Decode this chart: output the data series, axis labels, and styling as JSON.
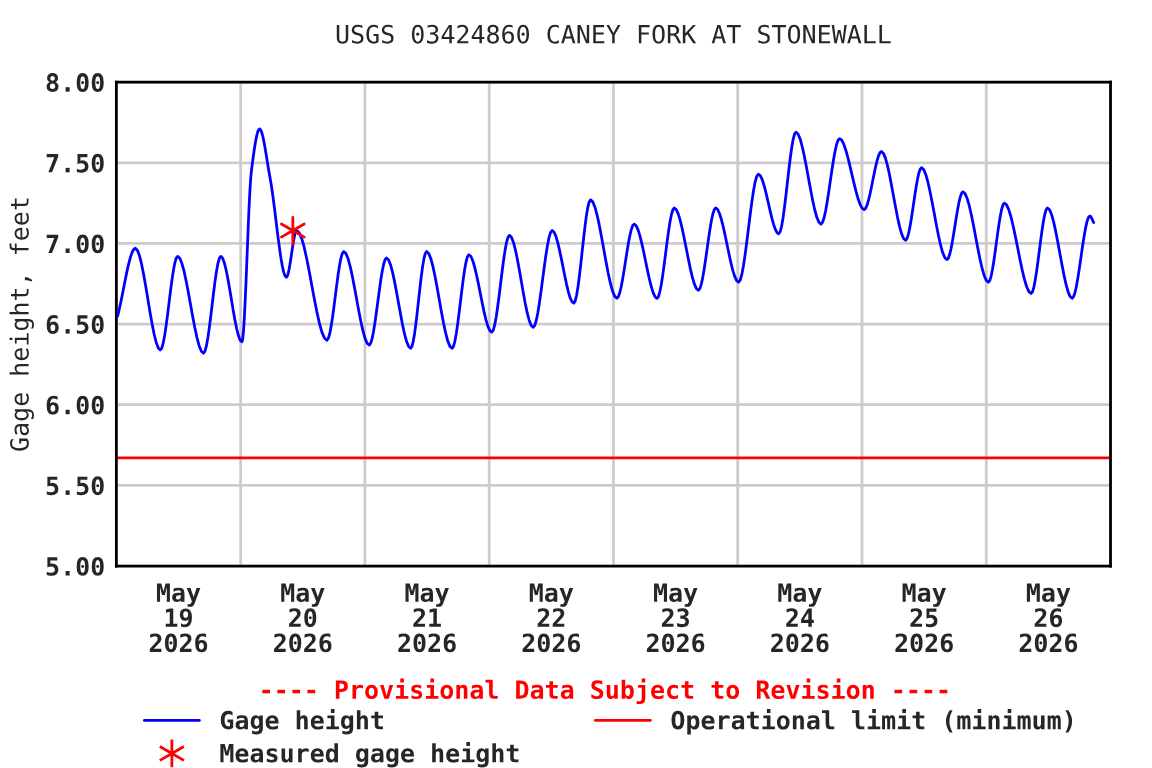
{
  "chart_data": {
    "type": "line",
    "title": "USGS 03424860 CANEY FORK AT STONEWALL",
    "ylabel": "Gage height, feet",
    "annotations": [
      "---- Provisional Data Subject to Revision ----"
    ],
    "series": [
      {
        "name": "Gage height",
        "color": "#0000ff",
        "marker": "none",
        "line_style": "solid",
        "x": [
          "2026-05-19T00:15",
          "2026-05-19T03:40",
          "2026-05-19T08:30",
          "2026-05-19T11:50",
          "2026-05-19T16:50",
          "2026-05-19T20:10",
          "2026-05-20T00:15",
          "2026-05-20T02:05",
          "2026-05-20T03:40",
          "2026-05-20T05:40",
          "2026-05-20T08:50",
          "2026-05-20T10:50",
          "2026-05-20T16:40",
          "2026-05-20T19:55",
          "2026-05-21T00:50",
          "2026-05-21T04:10",
          "2026-05-21T08:50",
          "2026-05-21T11:55",
          "2026-05-21T16:50",
          "2026-05-21T20:05",
          "2026-05-22T00:30",
          "2026-05-22T03:55",
          "2026-05-22T08:30",
          "2026-05-22T12:10",
          "2026-05-22T16:20",
          "2026-05-22T19:35",
          "2026-05-23T00:40",
          "2026-05-23T04:00",
          "2026-05-23T08:25",
          "2026-05-23T11:45",
          "2026-05-23T16:25",
          "2026-05-23T19:45",
          "2026-05-24T00:10",
          "2026-05-24T04:00",
          "2026-05-24T07:55",
          "2026-05-24T11:15",
          "2026-05-24T16:05",
          "2026-05-24T19:40",
          "2026-05-25T00:25",
          "2026-05-25T03:45",
          "2026-05-25T08:25",
          "2026-05-25T11:30",
          "2026-05-25T16:25",
          "2026-05-25T19:30",
          "2026-05-26T00:25",
          "2026-05-26T03:30",
          "2026-05-26T08:40",
          "2026-05-26T11:50",
          "2026-05-26T16:35",
          "2026-05-26T20:00",
          "2026-05-26T20:45"
        ],
        "values": [
          6.55,
          6.97,
          6.34,
          6.92,
          6.32,
          6.92,
          6.39,
          7.45,
          7.71,
          7.41,
          6.79,
          7.08,
          6.4,
          6.95,
          6.37,
          6.91,
          6.35,
          6.95,
          6.35,
          6.93,
          6.45,
          7.05,
          6.48,
          7.08,
          6.63,
          7.27,
          6.66,
          7.12,
          6.66,
          7.22,
          6.71,
          7.22,
          6.76,
          7.43,
          7.06,
          7.69,
          7.12,
          7.65,
          7.21,
          7.57,
          7.02,
          7.47,
          6.9,
          7.32,
          6.76,
          7.25,
          6.69,
          7.22,
          6.66,
          7.17,
          7.13
        ]
      },
      {
        "name": "Measured gage height",
        "type": "scatter",
        "color": "#ff0000",
        "marker": "cross",
        "x": [
          "2026-05-20T10:05"
        ],
        "values": [
          7.08
        ]
      }
    ],
    "ref_lines": [
      {
        "axis": "y",
        "value": 5.67,
        "label": "Operational limit (minimum)",
        "color": "#ff0000",
        "line_style": "solid"
      }
    ],
    "xlim": [
      "2026-05-19T00:00",
      "2026-05-27T00:00"
    ],
    "xticks": [
      {
        "value": "2026-05-19T00:00",
        "label": null
      },
      {
        "value": "2026-05-19T12:00",
        "label": "May\n19\n2026"
      },
      {
        "value": "2026-05-20T00:00",
        "label": null
      },
      {
        "value": "2026-05-20T12:00",
        "label": "May\n20\n2026"
      },
      {
        "value": "2026-05-21T00:00",
        "label": null
      },
      {
        "value": "2026-05-21T12:00",
        "label": "May\n21\n2026"
      },
      {
        "value": "2026-05-22T00:00",
        "label": null
      },
      {
        "value": "2026-05-22T12:00",
        "label": "May\n22\n2026"
      },
      {
        "value": "2026-05-23T00:00",
        "label": null
      },
      {
        "value": "2026-05-23T12:00",
        "label": "May\n23\n2026"
      },
      {
        "value": "2026-05-24T00:00",
        "label": null
      },
      {
        "value": "2026-05-24T12:00",
        "label": "May\n24\n2026"
      },
      {
        "value": "2026-05-25T00:00",
        "label": null
      },
      {
        "value": "2026-05-25T12:00",
        "label": "May\n25\n2026"
      },
      {
        "value": "2026-05-26T00:00",
        "label": null
      },
      {
        "value": "2026-05-26T12:00",
        "label": "May\n26\n2026"
      },
      {
        "value": "2026-05-27T00:00",
        "label": null
      }
    ],
    "ylim": [
      5.0,
      8.0
    ],
    "yticks": [
      {
        "value": 5.0,
        "label": "5.00"
      },
      {
        "value": 5.5,
        "label": "5.50"
      },
      {
        "value": 6.0,
        "label": "6.00"
      },
      {
        "value": 6.5,
        "label": "6.50"
      },
      {
        "value": 7.0,
        "label": "7.00"
      },
      {
        "value": 7.5,
        "label": "7.50"
      },
      {
        "value": 8.0,
        "label": "8.00"
      }
    ],
    "grid": true,
    "legend": "bottom"
  }
}
